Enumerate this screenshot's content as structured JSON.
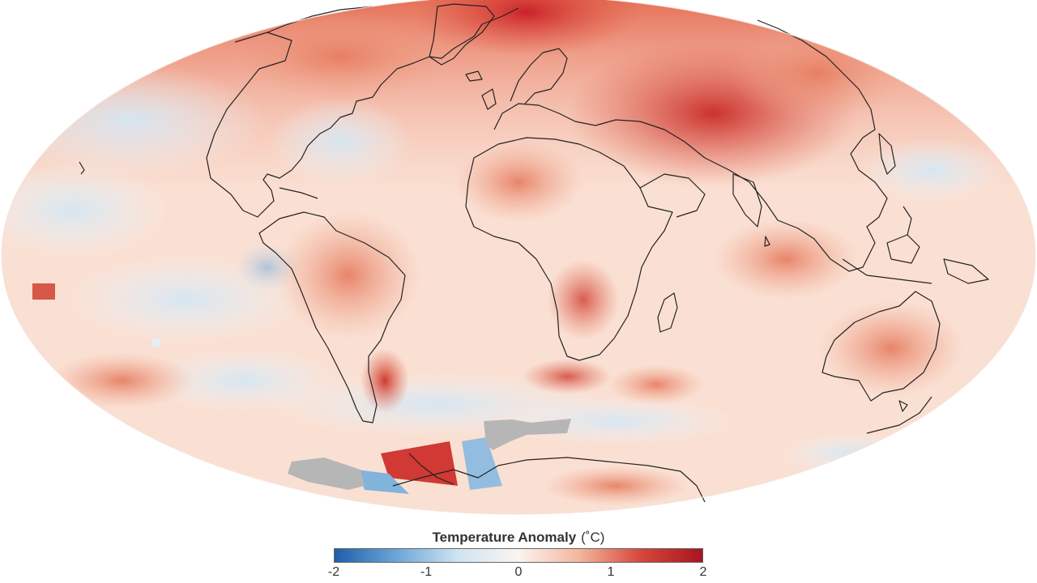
{
  "map": {
    "projection": "Mollweide",
    "ocean_color": "#fbe3d8",
    "coastline_color": "#222222",
    "no_data_color": "#b6b6b6"
  },
  "legend": {
    "title": "Temperature Anomaly",
    "unit": "(˚C)",
    "colors": [
      "#1f5eaa",
      "#6aa5d6",
      "#cfe3f2",
      "#fbf4f0",
      "#f3b59c",
      "#d6473b",
      "#a71520"
    ],
    "ticks": [
      "-2",
      "-1",
      "0",
      "1",
      "2"
    ],
    "tick_values": [
      -2,
      -1,
      0,
      1,
      2
    ],
    "range": [
      -2,
      2
    ]
  }
}
